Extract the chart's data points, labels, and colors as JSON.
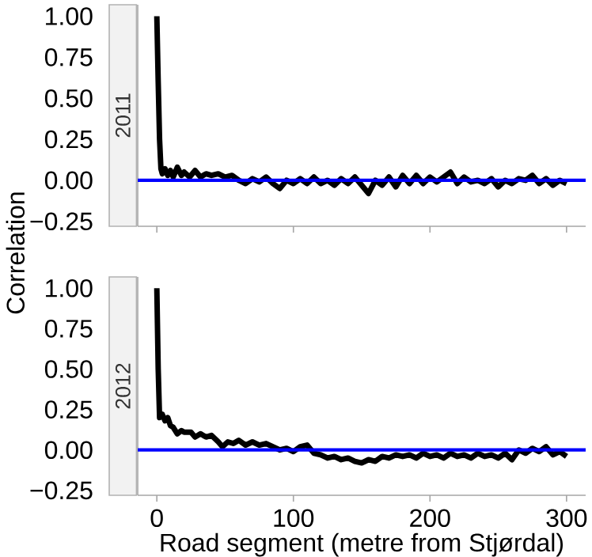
{
  "chart_data": [
    {
      "type": "line",
      "title": "2011",
      "ylabel": "Correlation",
      "xlim": [
        -14,
        314
      ],
      "ylim": [
        -0.28,
        1.07
      ],
      "xticks": [
        0,
        100,
        200,
        300
      ],
      "yticks": [
        {
          "value": -0.25,
          "label": "−0.25"
        },
        {
          "value": 0,
          "label": "0.00"
        },
        {
          "value": 0.25,
          "label": "0.25"
        },
        {
          "value": 0.5,
          "label": "0.50"
        },
        {
          "value": 0.75,
          "label": "0.75"
        },
        {
          "value": 1,
          "label": "1.00"
        }
      ],
      "tick_labels": "y",
      "ref_lines": [
        {
          "axis": "y",
          "value": 0,
          "color": "#0000ff"
        }
      ],
      "series": [
        {
          "color": "#000000",
          "x": [
            0,
            1,
            2,
            3,
            4,
            6,
            8,
            10,
            12,
            15,
            18,
            20,
            24,
            28,
            32,
            36,
            40,
            45,
            50,
            55,
            60,
            65,
            70,
            75,
            80,
            85,
            90,
            95,
            100,
            105,
            110,
            115,
            120,
            125,
            130,
            135,
            140,
            145,
            150,
            155,
            160,
            165,
            170,
            175,
            180,
            185,
            190,
            195,
            200,
            205,
            210,
            215,
            220,
            225,
            230,
            235,
            240,
            245,
            250,
            255,
            260,
            265,
            270,
            275,
            280,
            285,
            290,
            295,
            300
          ],
          "values": [
            1.0,
            0.6,
            0.25,
            0.07,
            0.04,
            0.07,
            0.03,
            0.06,
            0.02,
            0.08,
            0.03,
            0.05,
            0.02,
            0.06,
            0.02,
            0.04,
            0.03,
            0.04,
            0.02,
            0.03,
            0.0,
            -0.02,
            0.01,
            -0.01,
            0.02,
            -0.02,
            -0.05,
            0.0,
            -0.02,
            0.01,
            -0.02,
            0.02,
            -0.02,
            0.0,
            -0.03,
            0.01,
            -0.02,
            0.02,
            -0.03,
            -0.08,
            0.0,
            -0.03,
            0.02,
            -0.04,
            0.03,
            -0.02,
            0.03,
            -0.02,
            0.02,
            -0.01,
            0.02,
            0.05,
            -0.02,
            0.02,
            -0.01,
            0.0,
            -0.02,
            0.01,
            -0.04,
            0.0,
            -0.02,
            0.01,
            0.0,
            0.03,
            -0.02,
            0.01,
            -0.03,
            0.0,
            -0.02
          ]
        }
      ]
    },
    {
      "type": "line",
      "title": "2012",
      "xlabel": "Road segment (metre from Stjørdal)",
      "xlim": [
        -14,
        314
      ],
      "ylim": [
        -0.28,
        1.07
      ],
      "xticks": [
        0,
        100,
        200,
        300
      ],
      "yticks": [
        {
          "value": -0.25,
          "label": "−0.25"
        },
        {
          "value": 0,
          "label": "0.00"
        },
        {
          "value": 0.25,
          "label": "0.25"
        },
        {
          "value": 0.5,
          "label": "0.50"
        },
        {
          "value": 0.75,
          "label": "0.75"
        },
        {
          "value": 1,
          "label": "1.00"
        }
      ],
      "ref_lines": [
        {
          "axis": "y",
          "value": 0,
          "color": "#0000ff"
        }
      ],
      "series": [
        {
          "color": "#000000",
          "x": [
            0,
            1,
            2,
            4,
            6,
            8,
            10,
            12,
            15,
            18,
            20,
            25,
            28,
            32,
            36,
            40,
            45,
            48,
            52,
            56,
            60,
            65,
            70,
            75,
            80,
            85,
            90,
            95,
            100,
            105,
            110,
            115,
            120,
            125,
            130,
            135,
            140,
            145,
            150,
            155,
            160,
            165,
            170,
            175,
            180,
            185,
            190,
            195,
            200,
            205,
            210,
            215,
            220,
            225,
            230,
            235,
            240,
            245,
            250,
            255,
            260,
            265,
            270,
            275,
            280,
            285,
            290,
            295,
            300
          ],
          "values": [
            1.0,
            0.5,
            0.2,
            0.22,
            0.18,
            0.2,
            0.15,
            0.14,
            0.1,
            0.12,
            0.11,
            0.11,
            0.08,
            0.1,
            0.08,
            0.09,
            0.05,
            0.02,
            0.05,
            0.04,
            0.06,
            0.03,
            0.05,
            0.03,
            0.04,
            0.02,
            0.0,
            0.01,
            -0.01,
            0.02,
            0.03,
            -0.02,
            -0.03,
            -0.05,
            -0.04,
            -0.06,
            -0.05,
            -0.07,
            -0.08,
            -0.06,
            -0.07,
            -0.04,
            -0.05,
            -0.03,
            -0.04,
            -0.03,
            -0.05,
            -0.02,
            -0.04,
            -0.03,
            -0.05,
            -0.02,
            -0.04,
            -0.03,
            -0.05,
            -0.02,
            -0.04,
            -0.03,
            -0.05,
            -0.02,
            -0.06,
            0.0,
            -0.02,
            0.01,
            -0.01,
            0.02,
            -0.03,
            -0.01,
            -0.04
          ]
        }
      ]
    }
  ]
}
